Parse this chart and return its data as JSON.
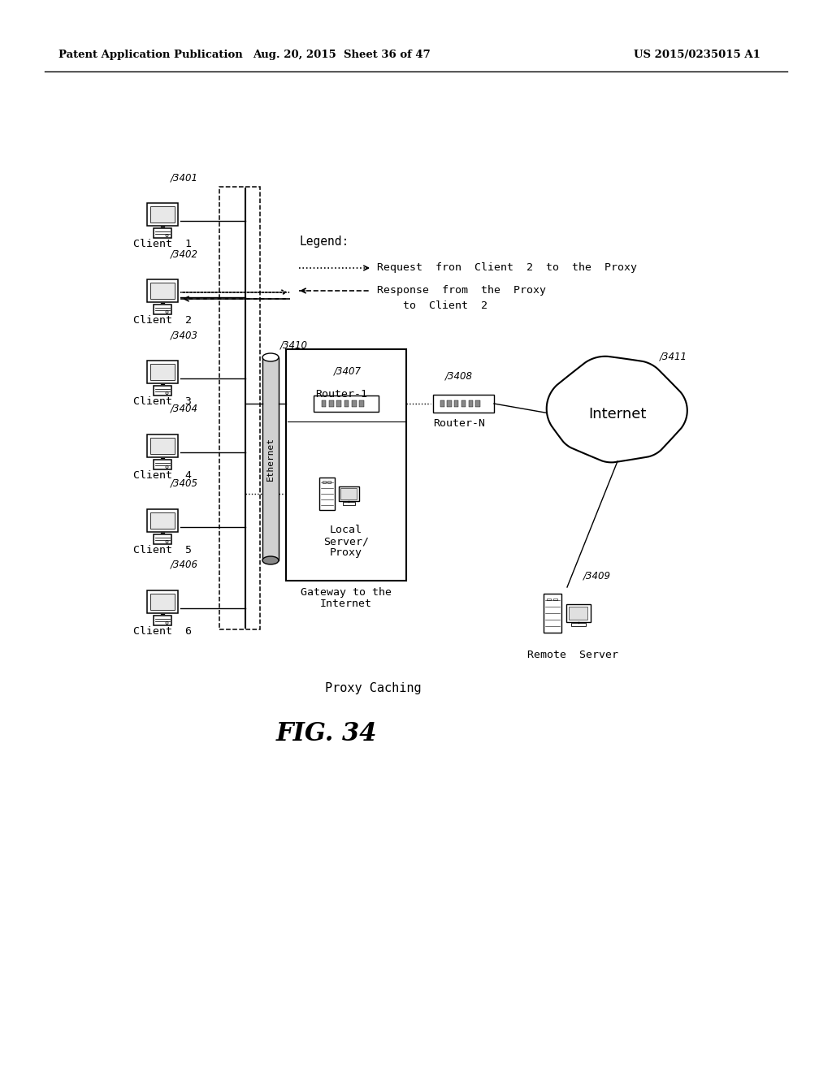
{
  "header_left": "Patent Application Publication",
  "header_mid": "Aug. 20, 2015  Sheet 36 of 47",
  "header_right": "US 2015/0235015 A1",
  "fig_label": "FIG. 34",
  "fig_title": "Proxy Caching",
  "legend_title": "Legend:",
  "legend_request": "Request  fron  Client  2  to  the  Proxy",
  "legend_response_1": "Response  from  the  Proxy",
  "legend_response_2": "    to  Client  2",
  "clients": [
    "Client  1",
    "Client  2",
    "Client  3",
    "Client  4",
    "Client  5",
    "Client  6"
  ],
  "client_refs": [
    "3401",
    "3402",
    "3403",
    "3404",
    "3405",
    "3406"
  ],
  "router1_label": "Router-1",
  "proxy_label_1": "Local",
  "proxy_label_2": "Server/",
  "proxy_label_3": "Proxy",
  "gateway_label_1": "Gateway to the",
  "gateway_label_2": "Internet",
  "ethernet_label": "Ethernet",
  "router1_ref": "3407",
  "routern_ref": "3408",
  "routern_label": "Router-N",
  "internet_label": "Internet",
  "internet_ref": "3411",
  "remote_ref": "3409",
  "remote_label": "Remote  Server",
  "ethernet_ref": "3410",
  "bg_color": "#ffffff",
  "line_color": "#000000"
}
